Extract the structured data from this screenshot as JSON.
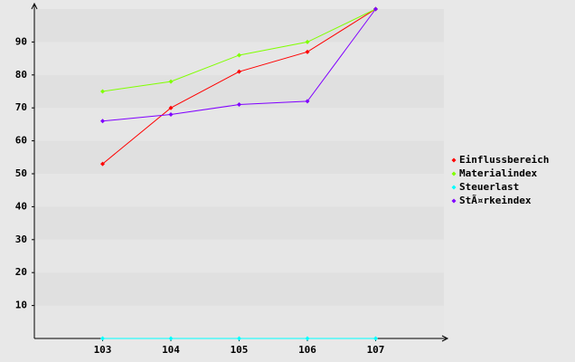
{
  "chart_data": {
    "type": "line",
    "categories": [
      "103",
      "104",
      "105",
      "106",
      "107"
    ],
    "series": [
      {
        "name": "Einflussbereich",
        "color": "#ff0000",
        "values": [
          53,
          70,
          81,
          87,
          100
        ]
      },
      {
        "name": "Materialindex",
        "color": "#80ff00",
        "values": [
          75,
          78,
          86,
          90,
          100
        ]
      },
      {
        "name": "Steuerlast",
        "color": "#00ffff",
        "values": [
          0,
          0,
          0,
          0,
          0
        ]
      },
      {
        "name": "StÃ¤rkeindex",
        "color": "#8000ff",
        "values": [
          66,
          68,
          71,
          72,
          100
        ]
      }
    ],
    "ylim": [
      0,
      100
    ],
    "yticks": [
      10,
      20,
      30,
      40,
      50,
      60,
      70,
      80,
      90
    ],
    "legend": "right"
  }
}
